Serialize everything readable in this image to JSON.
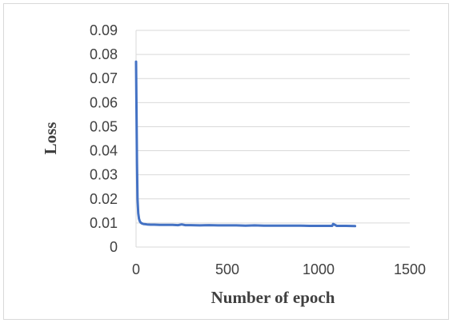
{
  "chart_data": {
    "type": "line",
    "title": "",
    "xlabel": "Number of epoch",
    "ylabel": "Loss",
    "xlim": [
      0,
      1500
    ],
    "ylim": [
      0,
      0.09
    ],
    "x_ticks": [
      "0",
      "500",
      "1000",
      "1500"
    ],
    "y_ticks": [
      "0",
      "0.01",
      "0.02",
      "0.03",
      "0.04",
      "0.05",
      "0.06",
      "0.07",
      "0.08",
      "0.09"
    ],
    "grid": "horizontal",
    "legend": "none",
    "series": [
      {
        "color": "#4472c4",
        "x": [
          0,
          2,
          5,
          8,
          12,
          16,
          20,
          25,
          30,
          40,
          50,
          60,
          80,
          100,
          130,
          160,
          200,
          230,
          250,
          270,
          300,
          350,
          400,
          450,
          500,
          550,
          600,
          650,
          700,
          750,
          800,
          850,
          900,
          950,
          1000,
          1050,
          1075,
          1080,
          1100,
          1150,
          1200
        ],
        "y": [
          0.077,
          0.06,
          0.035,
          0.02,
          0.014,
          0.0118,
          0.0108,
          0.0102,
          0.0099,
          0.0096,
          0.0095,
          0.0094,
          0.0093,
          0.0093,
          0.0092,
          0.0092,
          0.0092,
          0.0091,
          0.0094,
          0.0091,
          0.0091,
          0.009,
          0.0091,
          0.009,
          0.009,
          0.009,
          0.0089,
          0.009,
          0.0089,
          0.0089,
          0.0089,
          0.0089,
          0.0089,
          0.0088,
          0.0088,
          0.0088,
          0.0088,
          0.0096,
          0.0088,
          0.0088,
          0.0087
        ]
      }
    ]
  }
}
